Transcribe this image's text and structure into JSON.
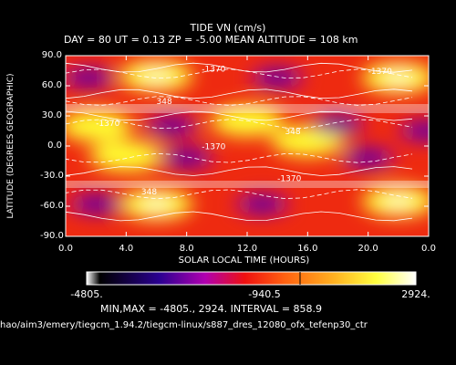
{
  "header": {
    "title": "TIDE VN (cm/s)",
    "subtitle": "DAY =  80  UT =  0.13  ZP =  -5.00  MEAN ALTITUDE = 108 km"
  },
  "footer": {
    "minmax_line": "MIN,MAX =     -4805.,       2924. INTERVAL =      858.9",
    "file_path": "hao/aim3/emery/tiegcm_1.94.2/tiegcm-linux/s887_dres_12080_ofx_tefenp30_ctr"
  },
  "chart_data": {
    "type": "heatmap",
    "title": "TIDE VN (cm/s)",
    "xlabel": "SOLAR LOCAL TIME (HOURS)",
    "ylabel": "LATITUDE (DEGREES GEOGRAPHIC)",
    "xlim": [
      0,
      24
    ],
    "ylim": [
      -90,
      90
    ],
    "x_ticks": [
      "0.0",
      "4.0",
      "8.0",
      "12.0",
      "16.0",
      "20.0",
      "0.0"
    ],
    "y_ticks": [
      "90.0",
      "60.0",
      "30.0",
      "0.0",
      "-30.0",
      "-60.0",
      "-90.0"
    ],
    "min": -4805,
    "max": 2924,
    "interval": 858.9,
    "colorbar_ticks": [
      "-4805.",
      "-940.5",
      "2924."
    ],
    "contour_labels": [
      "-1370",
      "348"
    ],
    "highs": [
      {
        "lt": 6,
        "lat": 70
      },
      {
        "lt": 22,
        "lat": 68
      },
      {
        "lt": 2,
        "lat": 20
      },
      {
        "lt": 12,
        "lat": 25
      },
      {
        "lt": 4,
        "lat": -10
      },
      {
        "lt": 16,
        "lat": 5
      },
      {
        "lt": 6,
        "lat": -58
      },
      {
        "lt": 22,
        "lat": -55
      }
    ],
    "lows": [
      {
        "lt": 14,
        "lat": 68
      },
      {
        "lt": 1.5,
        "lat": 68
      },
      {
        "lt": 7,
        "lat": 20
      },
      {
        "lt": 18,
        "lat": 22
      },
      {
        "lt": 23.8,
        "lat": 15
      },
      {
        "lt": 8,
        "lat": -12
      },
      {
        "lt": 20,
        "lat": -12
      },
      {
        "lt": 2,
        "lat": -58
      },
      {
        "lt": 13,
        "lat": -58
      }
    ]
  }
}
